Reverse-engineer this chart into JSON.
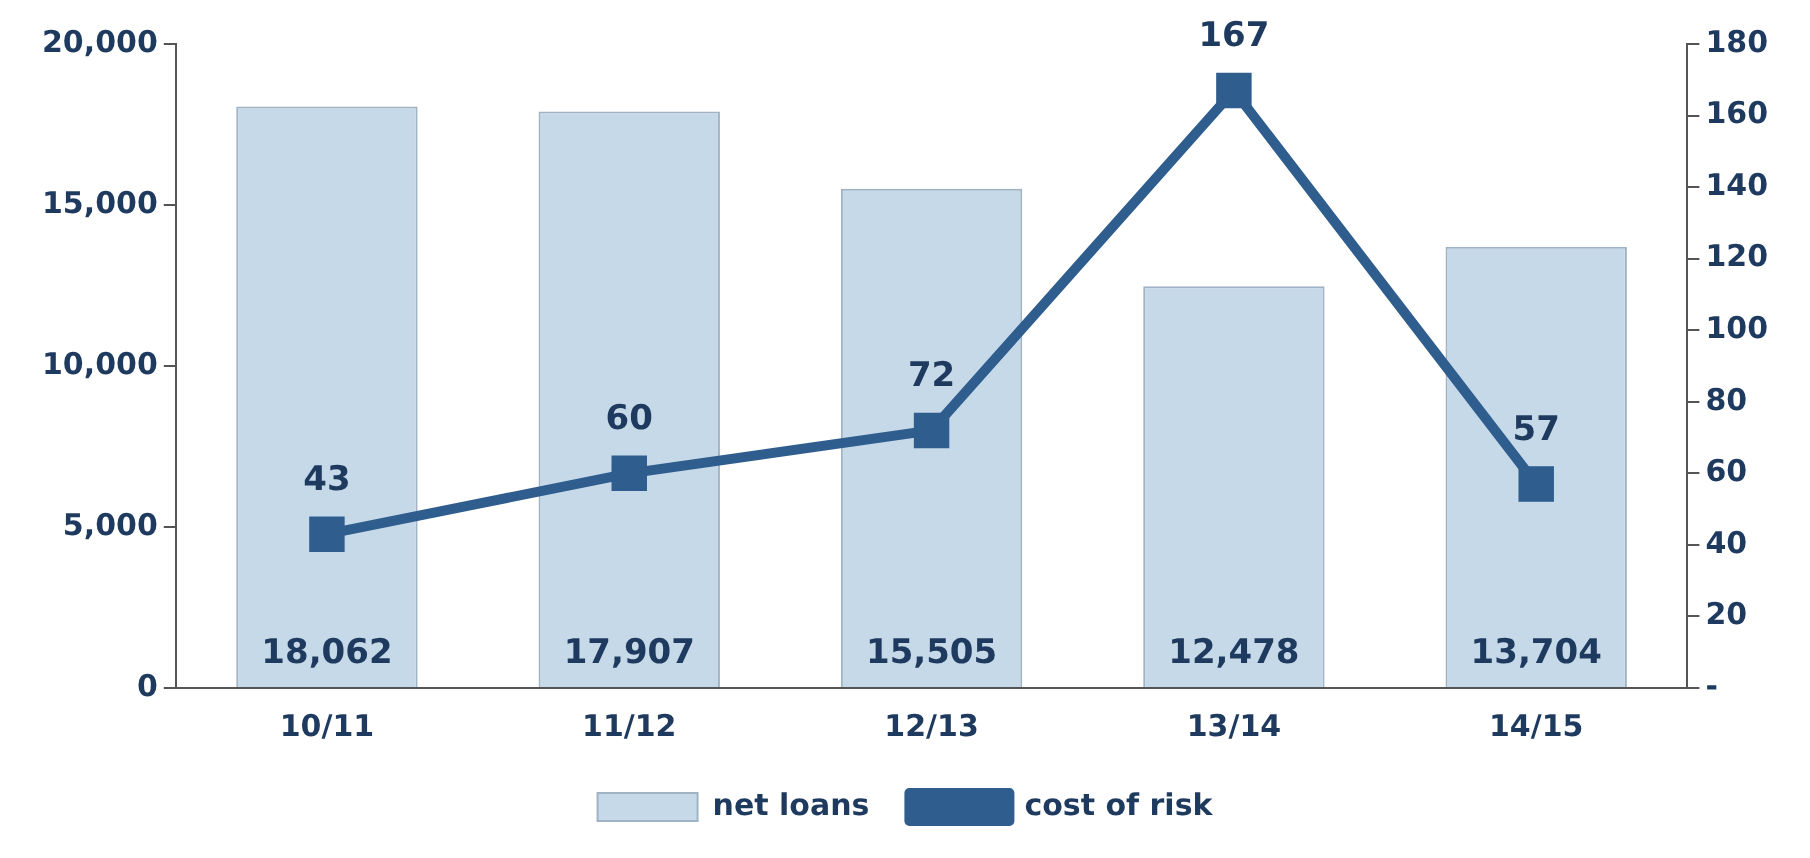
{
  "chart_data": {
    "type": "bar",
    "categories": [
      "10/11",
      "11/12",
      "12/13",
      "13/14",
      "14/15"
    ],
    "series": [
      {
        "name": "net loans",
        "color": "#c6d9e8",
        "values": [
          18062,
          17907,
          15505,
          12478,
          13704
        ],
        "value_labels": [
          "18,062",
          "17,907",
          "15,505",
          "12,478",
          "13,704"
        ]
      },
      {
        "name": "cost of risk",
        "type": "line",
        "axis": "y2",
        "color": "#2e5d8e",
        "values": [
          43,
          60,
          72,
          167,
          57
        ],
        "value_labels": [
          "43",
          "60",
          "72",
          "167",
          "57"
        ]
      }
    ],
    "ylim": [
      0,
      20000
    ],
    "yticks": [
      {
        "value": 0,
        "label": "0"
      },
      {
        "value": 5000,
        "label": "5,000"
      },
      {
        "value": 10000,
        "label": "10,000"
      },
      {
        "value": 15000,
        "label": "15,000"
      },
      {
        "value": 20000,
        "label": "20,000"
      }
    ],
    "y2lim": [
      0,
      180
    ],
    "y2ticks": [
      {
        "value": 0,
        "label": "-"
      },
      20,
      40,
      60,
      80,
      100,
      120,
      140,
      160,
      180
    ],
    "grid": false,
    "legend": "bottom",
    "marker": "square",
    "line_style": "solid"
  }
}
